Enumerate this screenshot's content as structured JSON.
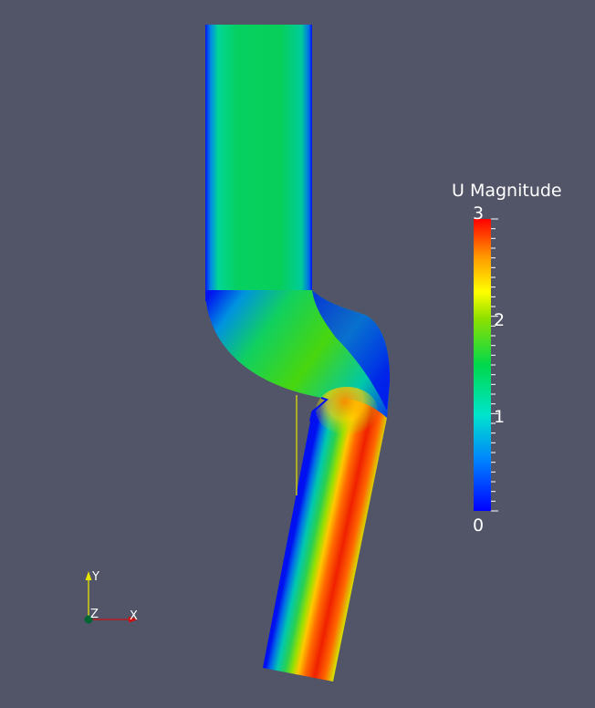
{
  "colorbar": {
    "title": "U Magnitude",
    "range": [
      0,
      3
    ],
    "tick_labels": [
      "3",
      "2",
      "1",
      "0"
    ],
    "colors": [
      "#0000ff",
      "#00bfff",
      "#00e57a",
      "#39d100",
      "#ffff00",
      "#ff8000",
      "#ff0000"
    ]
  },
  "axes_triad": {
    "x_label": "X",
    "y_label": "Y",
    "z_label": "Z",
    "x_color": "#cc1010",
    "y_color": "#e6e600",
    "z_color": "#006633"
  },
  "background_color": "#525468"
}
